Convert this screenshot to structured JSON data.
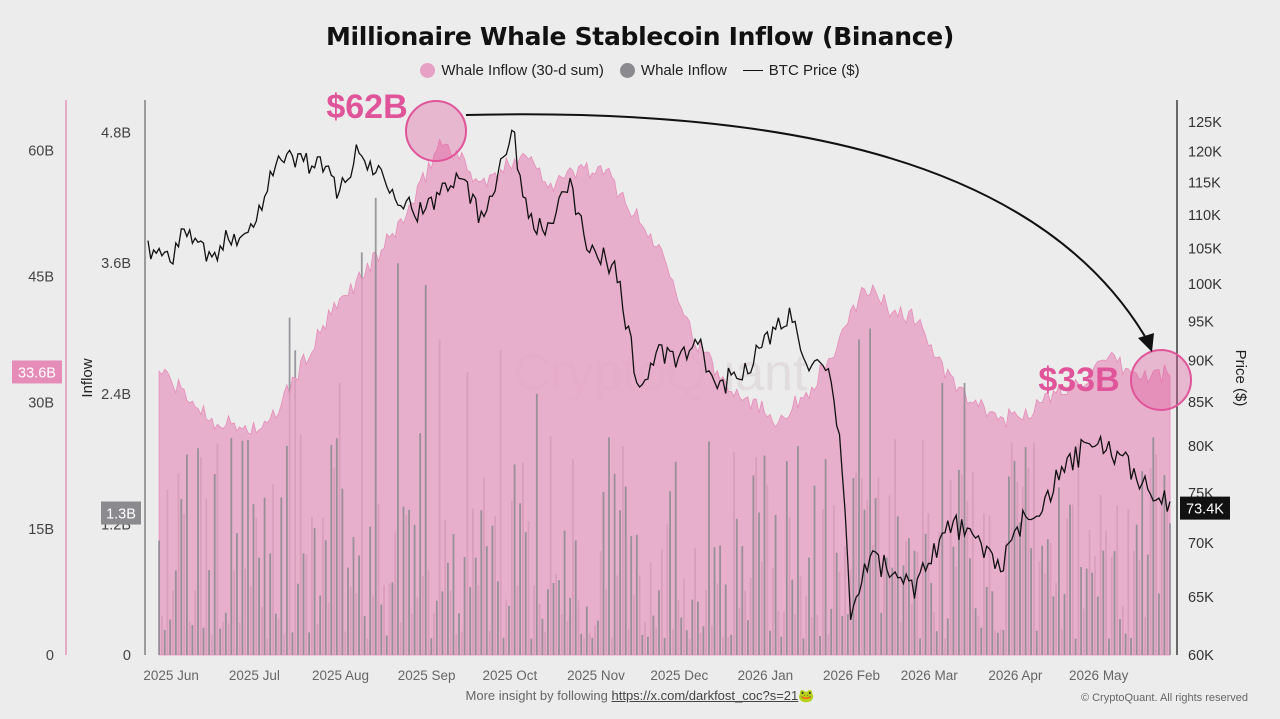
{
  "header": {
    "title": "Millionaire Whale Stablecoin Inflow (Binance)",
    "legend": [
      {
        "label": "Whale Inflow (30-d sum)",
        "color": "#e7a1c4",
        "type": "dot"
      },
      {
        "label": "Whale Inflow",
        "color": "#8a8a8f",
        "type": "dot"
      },
      {
        "label": "BTC Price ($)",
        "color": "#111111",
        "type": "line"
      }
    ]
  },
  "footer": {
    "prefix": "More insight by following ",
    "link": "https://x.com/darkfost_coc?s=21",
    "emoji": "🐸",
    "copyright": "© CryptoQuant. All rights reserved"
  },
  "watermark": "CryptoQuant",
  "colors": {
    "area": "#e7a1c4",
    "area_edge": "#e58db8",
    "bars": "#8a8a8f",
    "price": "#111111",
    "callout": "#e0559a",
    "sum_axis": "#e58db8"
  },
  "chart_data": {
    "type": "area",
    "x_axis": {
      "labels": [
        "2025 Jun",
        "2025 Jul",
        "2025 Aug",
        "2025 Sep",
        "2025 Oct",
        "2025 Nov",
        "2025 Dec",
        "2026 Jan",
        "2026 Feb",
        "2026 Mar",
        "2026 Apr",
        "2026 May"
      ],
      "range": [
        "2025-05-28",
        "2026-05-31"
      ]
    },
    "y_axes": {
      "sum": {
        "ticks": [
          "0",
          "15B",
          "30B",
          "45B",
          "60B"
        ],
        "tick_values": [
          0,
          15,
          30,
          45,
          60
        ],
        "range": [
          0,
          60
        ],
        "unit": "B",
        "current_label": "33.6B",
        "current_value": 33.6
      },
      "inflow": {
        "label": "Inflow",
        "ticks": [
          "0",
          "1.2B",
          "2.4B",
          "3.6B",
          "4.8B"
        ],
        "tick_values": [
          0,
          1.2,
          2.4,
          3.6,
          4.8
        ],
        "range": [
          0,
          4.8
        ],
        "current_label": "1.3B",
        "current_value": 1.3
      },
      "price": {
        "label": "Price ($)",
        "scale": "log",
        "ticks": [
          "60K",
          "65K",
          "70K",
          "75K",
          "80K",
          "85K",
          "90K",
          "95K",
          "100K",
          "105K",
          "110K",
          "115K",
          "120K",
          "125K"
        ],
        "tick_values": [
          60,
          65,
          70,
          75,
          80,
          85,
          90,
          95,
          100,
          105,
          110,
          115,
          120,
          125
        ],
        "range": [
          60,
          125
        ],
        "unit": "K",
        "current_label": "73.4K",
        "current_value": 73.4
      }
    },
    "series": [
      {
        "name": "Whale Inflow (30-d sum)",
        "axis": "sum",
        "unit": "B",
        "points": [
          [
            "2025-06-01",
            34
          ],
          [
            "2025-06-10",
            31
          ],
          [
            "2025-06-20",
            28
          ],
          [
            "2025-07-01",
            27
          ],
          [
            "2025-07-10",
            27
          ],
          [
            "2025-07-20",
            33
          ],
          [
            "2025-08-01",
            40
          ],
          [
            "2025-08-10",
            44
          ],
          [
            "2025-08-20",
            48
          ],
          [
            "2025-09-01",
            54
          ],
          [
            "2025-09-10",
            61
          ],
          [
            "2025-09-15",
            60
          ],
          [
            "2025-09-25",
            56
          ],
          [
            "2025-10-01",
            57
          ],
          [
            "2025-10-10",
            60
          ],
          [
            "2025-10-20",
            56
          ],
          [
            "2025-11-01",
            58
          ],
          [
            "2025-11-10",
            57
          ],
          [
            "2025-11-20",
            52
          ],
          [
            "2025-12-01",
            47
          ],
          [
            "2025-12-10",
            38
          ],
          [
            "2025-12-20",
            33
          ],
          [
            "2026-01-01",
            30
          ],
          [
            "2026-01-10",
            28
          ],
          [
            "2026-01-20",
            31
          ],
          [
            "2026-02-01",
            37
          ],
          [
            "2026-02-10",
            44
          ],
          [
            "2026-02-20",
            41
          ],
          [
            "2026-03-01",
            40
          ],
          [
            "2026-03-10",
            34
          ],
          [
            "2026-03-20",
            30
          ],
          [
            "2026-04-01",
            28
          ],
          [
            "2026-04-10",
            29
          ],
          [
            "2026-04-20",
            31
          ],
          [
            "2026-05-01",
            33
          ],
          [
            "2026-05-10",
            35
          ],
          [
            "2026-05-20",
            33
          ],
          [
            "2026-05-31",
            33.6
          ]
        ]
      },
      {
        "name": "BTC Price ($)",
        "axis": "price",
        "unit": "K",
        "points": [
          [
            "2025-05-28",
            105
          ],
          [
            "2025-06-05",
            104
          ],
          [
            "2025-06-12",
            108
          ],
          [
            "2025-06-20",
            103
          ],
          [
            "2025-06-27",
            107
          ],
          [
            "2025-07-05",
            108
          ],
          [
            "2025-07-12",
            118
          ],
          [
            "2025-07-20",
            119
          ],
          [
            "2025-07-28",
            118
          ],
          [
            "2025-08-05",
            114
          ],
          [
            "2025-08-12",
            120
          ],
          [
            "2025-08-15",
            118
          ],
          [
            "2025-08-22",
            116
          ],
          [
            "2025-08-28",
            112
          ],
          [
            "2025-09-05",
            110
          ],
          [
            "2025-09-12",
            115
          ],
          [
            "2025-09-18",
            117
          ],
          [
            "2025-09-25",
            109
          ],
          [
            "2025-10-01",
            117
          ],
          [
            "2025-10-06",
            124
          ],
          [
            "2025-10-10",
            113
          ],
          [
            "2025-10-17",
            107
          ],
          [
            "2025-10-27",
            114
          ],
          [
            "2025-11-04",
            104
          ],
          [
            "2025-11-12",
            103
          ],
          [
            "2025-11-21",
            86
          ],
          [
            "2025-11-27",
            91
          ],
          [
            "2025-12-05",
            90
          ],
          [
            "2025-12-12",
            92
          ],
          [
            "2025-12-18",
            87
          ],
          [
            "2025-12-26",
            88
          ],
          [
            "2026-01-05",
            92
          ],
          [
            "2026-01-14",
            96
          ],
          [
            "2026-01-22",
            89
          ],
          [
            "2026-01-28",
            88
          ],
          [
            "2026-02-02",
            78
          ],
          [
            "2026-02-05",
            63
          ],
          [
            "2026-02-12",
            69
          ],
          [
            "2026-02-20",
            67
          ],
          [
            "2026-02-28",
            66
          ],
          [
            "2026-03-06",
            69
          ],
          [
            "2026-03-14",
            72
          ],
          [
            "2026-03-22",
            70
          ],
          [
            "2026-04-01",
            68
          ],
          [
            "2026-04-08",
            72
          ],
          [
            "2026-04-15",
            74
          ],
          [
            "2026-04-22",
            77
          ],
          [
            "2026-05-01",
            80
          ],
          [
            "2026-05-08",
            80
          ],
          [
            "2026-05-15",
            78
          ],
          [
            "2026-05-22",
            76
          ],
          [
            "2026-05-31",
            73.4
          ]
        ]
      },
      {
        "name": "Whale Inflow",
        "axis": "inflow",
        "unit": "B",
        "description_of_values": "Daily bars, mostly 0.2–1.8B with spikes up to about 3.6B",
        "peaks": [
          [
            "2025-06-15",
            1.9
          ],
          [
            "2025-07-18",
            3.1
          ],
          [
            "2025-07-20",
            2.8
          ],
          [
            "2025-08-05",
            2.5
          ],
          [
            "2025-08-13",
            3.7
          ],
          [
            "2025-08-18",
            4.2
          ],
          [
            "2025-08-26",
            3.6
          ],
          [
            "2025-09-05",
            3.4
          ],
          [
            "2025-09-10",
            2.9
          ],
          [
            "2025-09-20",
            2.6
          ],
          [
            "2025-10-02",
            2.8
          ],
          [
            "2025-10-15",
            2.4
          ],
          [
            "2025-10-28",
            1.8
          ],
          [
            "2025-11-10",
            2.0
          ],
          [
            "2026-02-08",
            2.9
          ],
          [
            "2026-02-12",
            3.0
          ],
          [
            "2026-03-10",
            2.5
          ],
          [
            "2026-03-18",
            2.5
          ],
          [
            "2026-05-25",
            2.0
          ]
        ]
      }
    ],
    "annotations": [
      {
        "text": "$62B",
        "date": "2025-09-15",
        "value_sum": 62
      },
      {
        "text": "$33B",
        "date": "2026-05-29",
        "value_sum": 33
      }
    ]
  }
}
